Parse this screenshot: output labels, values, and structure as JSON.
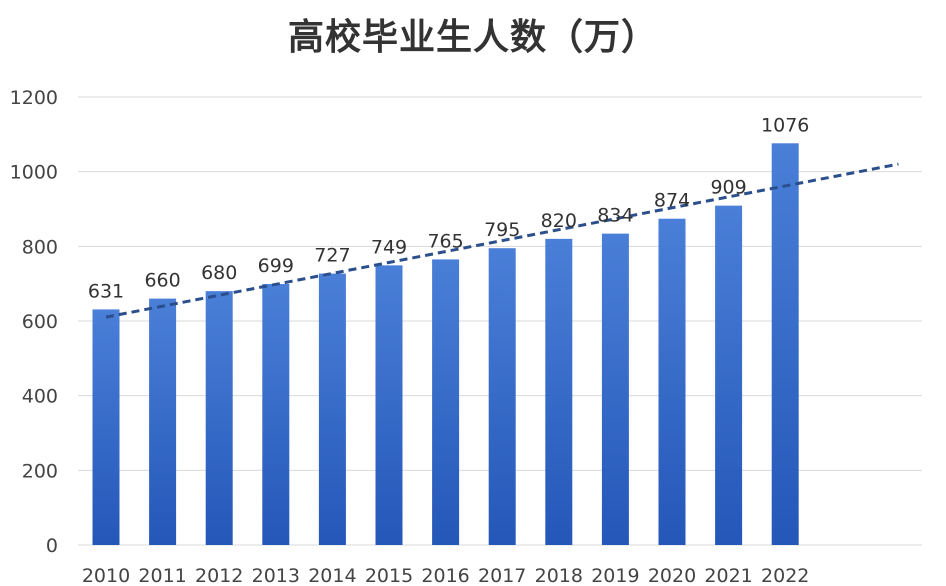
{
  "chart_data": {
    "type": "bar",
    "title": "高校毕业生人数（万）",
    "categories": [
      "2010",
      "2011",
      "2012",
      "2013",
      "2014",
      "2015",
      "2016",
      "2017",
      "2018",
      "2019",
      "2020",
      "2021",
      "2022"
    ],
    "values": [
      631,
      660,
      680,
      699,
      727,
      749,
      765,
      795,
      820,
      834,
      874,
      909,
      1076
    ],
    "data_labels": [
      "631",
      "660",
      "680",
      "699",
      "727",
      "749",
      "765",
      "795",
      "820",
      "834",
      "874",
      "909",
      "1076"
    ],
    "ylim": [
      0,
      1200
    ],
    "yticks": [
      0,
      200,
      400,
      600,
      800,
      1000,
      1200
    ],
    "grid": true,
    "trendline": {
      "style": "dashed",
      "type": "linear"
    },
    "colors": {
      "bar_top": "#4a7fd8",
      "bar_bottom": "#2457b8",
      "trend": "#2b4f8c",
      "grid": "#d9d9d9"
    }
  }
}
